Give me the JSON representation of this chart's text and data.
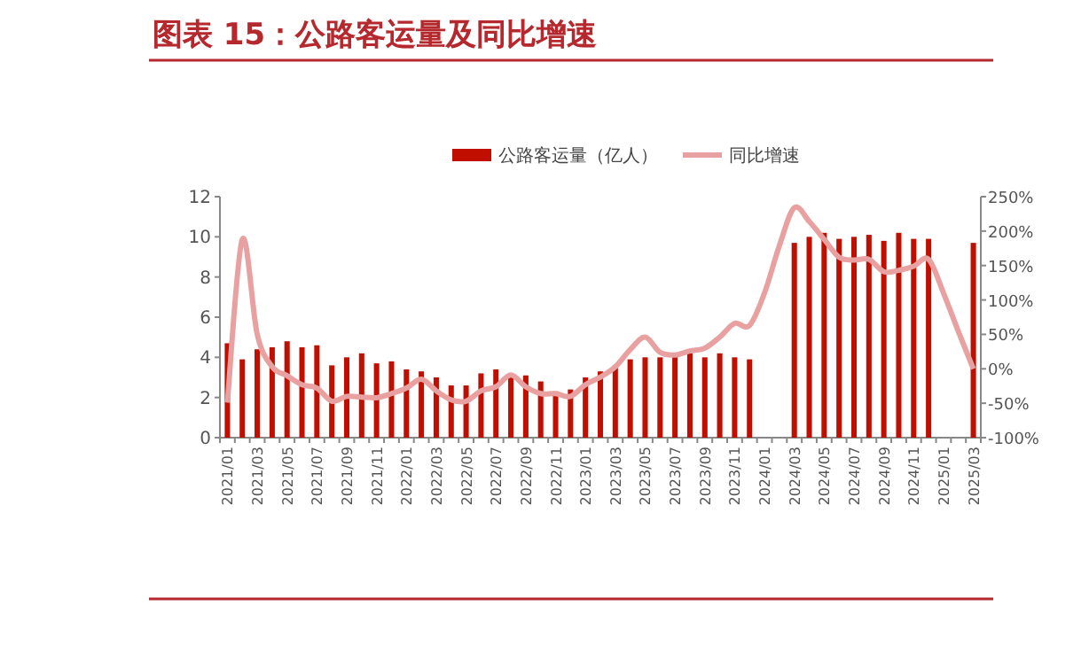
{
  "chart_data": {
    "type": "bar",
    "title": "图表 15：公路客运量及同比增速",
    "categories": [
      "2021/01",
      null,
      "2021/03",
      null,
      "2021/05",
      null,
      "2021/07",
      null,
      "2021/09",
      null,
      "2021/11",
      null,
      "2022/01",
      null,
      "2022/03",
      null,
      "2022/05",
      null,
      "2022/07",
      null,
      "2022/09",
      null,
      "2022/11",
      null,
      "2023/01",
      null,
      "2023/03",
      null,
      "2023/05",
      null,
      "2023/07",
      null,
      "2023/09",
      null,
      "2023/11",
      null,
      "2024/01",
      null,
      "2024/03",
      null,
      "2024/05",
      null,
      "2024/07",
      null,
      "2024/09",
      null,
      "2024/11",
      null,
      "2025/01",
      null,
      "2025/03"
    ],
    "series": [
      {
        "name": "公路客运量（亿人）",
        "color": "#c00f00",
        "values": [
          4.7,
          3.9,
          4.4,
          4.5,
          4.8,
          4.5,
          4.6,
          3.6,
          4.0,
          4.2,
          3.7,
          3.8,
          3.4,
          3.3,
          3.0,
          2.6,
          2.6,
          3.2,
          3.4,
          3.1,
          3.1,
          2.8,
          2.3,
          2.4,
          3.0,
          3.3,
          3.6,
          3.9,
          4.0,
          4.0,
          4.1,
          4.2,
          4.0,
          4.2,
          4.0,
          3.9,
          null,
          null,
          9.7,
          10.0,
          10.2,
          9.9,
          10.0,
          10.1,
          9.8,
          10.2,
          9.9,
          9.9,
          null,
          null,
          9.7
        ]
      },
      {
        "name": "同比增速",
        "type": "line",
        "axis": "y2",
        "color": "#e8a0a0",
        "values": [
          -49,
          188,
          50,
          3,
          -10,
          -23,
          -28,
          -47,
          -40,
          -41,
          -42,
          -36,
          -28,
          -15,
          -32,
          -45,
          -47,
          -32,
          -26,
          -9,
          -26,
          -36,
          -36,
          -40,
          -23,
          -12,
          3,
          28,
          46,
          24,
          20,
          26,
          30,
          46,
          66,
          63,
          110,
          179,
          234,
          214,
          188,
          162,
          158,
          159,
          141,
          143,
          149,
          159,
          110,
          54,
          0
        ]
      }
    ],
    "ylim": [
      0,
      12
    ],
    "yticks": [
      0,
      2,
      4,
      6,
      8,
      10,
      12
    ],
    "y2lim": [
      -100,
      250
    ],
    "y2ticks": [
      {
        "value": -100,
        "label": "-100%"
      },
      {
        "value": -50,
        "label": "-50%"
      },
      {
        "value": 0,
        "label": "0%"
      },
      {
        "value": 50,
        "label": "50%"
      },
      {
        "value": 100,
        "label": "100%"
      },
      {
        "value": 150,
        "label": "150%"
      },
      {
        "value": 200,
        "label": "200%"
      },
      {
        "value": 250,
        "label": "250%"
      }
    ],
    "grid": false,
    "legend": "top"
  }
}
